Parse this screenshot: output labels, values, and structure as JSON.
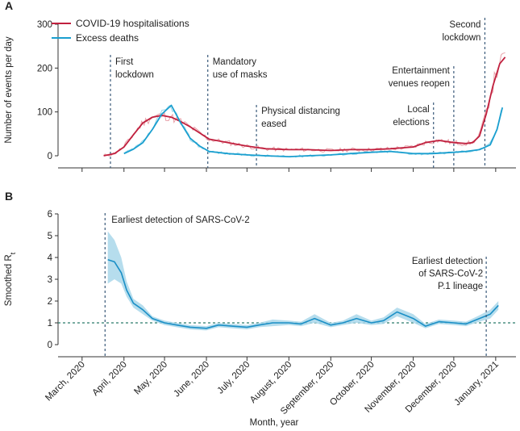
{
  "chart_data": [
    {
      "panel": "A",
      "type": "line",
      "ylabel": "Number of events per day",
      "ylim": [
        0,
        300
      ],
      "yticks": [
        0,
        100,
        200,
        300
      ],
      "colors": {
        "hosp": "#c0203e",
        "hosp_raw": "#e8a0a8",
        "deaths": "#1a9fcf",
        "deaths_raw": "#9ad6ea"
      },
      "legend": [
        "COVID-19 hospitalisations",
        "Excess deaths"
      ],
      "series": [
        {
          "name": "COVID-19 hospitalisations",
          "x": [
            "2020-03-17",
            "2020-03-25",
            "2020-04-01",
            "2020-04-08",
            "2020-04-15",
            "2020-04-22",
            "2020-04-29",
            "2020-05-06",
            "2020-05-13",
            "2020-05-20",
            "2020-05-27",
            "2020-06-03",
            "2020-06-17",
            "2020-07-01",
            "2020-07-15",
            "2020-08-01",
            "2020-08-15",
            "2020-09-01",
            "2020-09-15",
            "2020-10-01",
            "2020-10-15",
            "2020-11-01",
            "2020-11-10",
            "2020-11-20",
            "2020-12-01",
            "2020-12-10",
            "2020-12-15",
            "2020-12-20",
            "2020-12-25",
            "2020-12-30",
            "2021-01-04",
            "2021-01-08"
          ],
          "values": [
            0,
            5,
            20,
            48,
            75,
            88,
            92,
            88,
            78,
            66,
            52,
            38,
            30,
            22,
            16,
            14,
            14,
            12,
            14,
            14,
            16,
            20,
            30,
            35,
            30,
            28,
            30,
            45,
            95,
            160,
            210,
            225
          ]
        },
        {
          "name": "Excess deaths",
          "x": [
            "2020-04-01",
            "2020-04-08",
            "2020-04-15",
            "2020-04-22",
            "2020-04-29",
            "2020-05-06",
            "2020-05-13",
            "2020-05-20",
            "2020-05-27",
            "2020-06-03",
            "2020-06-17",
            "2020-07-01",
            "2020-07-15",
            "2020-08-01",
            "2020-08-15",
            "2020-09-01",
            "2020-09-15",
            "2020-10-01",
            "2020-10-15",
            "2020-11-01",
            "2020-11-15",
            "2020-12-01",
            "2020-12-10",
            "2020-12-20",
            "2020-12-28",
            "2021-01-02",
            "2021-01-06"
          ],
          "values": [
            5,
            15,
            30,
            60,
            95,
            115,
            75,
            40,
            22,
            10,
            5,
            2,
            0,
            -2,
            0,
            2,
            5,
            8,
            10,
            5,
            5,
            8,
            10,
            14,
            25,
            60,
            110
          ]
        }
      ],
      "events": [
        {
          "label": [
            "First",
            "lockdown"
          ],
          "date": "2020-03-22"
        },
        {
          "label": [
            "Mandatory",
            "use of masks"
          ],
          "date": "2020-06-02"
        },
        {
          "label": [
            "Physical distancing",
            "eased"
          ],
          "date": "2020-07-08"
        },
        {
          "label": [
            "Entertainment",
            "venues reopen"
          ],
          "date": "2020-12-01"
        },
        {
          "label": [
            "Local",
            "elections"
          ],
          "date": "2020-11-16"
        },
        {
          "label": [
            "Second",
            "lockdown"
          ],
          "date": "2020-12-24"
        }
      ]
    },
    {
      "panel": "B",
      "type": "line",
      "ylabel": "Smoothed R",
      "ylabel_sub": "t",
      "ylim": [
        0,
        6
      ],
      "yticks": [
        0,
        1,
        2,
        3,
        4,
        5,
        6
      ],
      "reference_y": 1,
      "xlabel": "Month, year",
      "x_tick_labels": [
        "March, 2020",
        "April, 2020",
        "May, 2020",
        "June, 2020",
        "July, 2020",
        "August, 2020",
        "September, 2020",
        "October, 2020",
        "November, 2020",
        "December, 2020",
        "January, 2021"
      ],
      "x_tick_dates": [
        "2020-03-01",
        "2020-04-01",
        "2020-05-01",
        "2020-06-01",
        "2020-07-01",
        "2020-08-01",
        "2020-09-01",
        "2020-10-01",
        "2020-11-01",
        "2020-12-01",
        "2021-01-01"
      ],
      "colors": {
        "line": "#1a8fc6",
        "band": "#a9d7ea"
      },
      "series": [
        {
          "name": "Smoothed Rt",
          "x": [
            "2020-03-20",
            "2020-03-25",
            "2020-03-30",
            "2020-04-03",
            "2020-04-08",
            "2020-04-15",
            "2020-04-22",
            "2020-05-01",
            "2020-05-10",
            "2020-05-20",
            "2020-06-01",
            "2020-06-10",
            "2020-06-20",
            "2020-07-01",
            "2020-07-10",
            "2020-07-20",
            "2020-08-01",
            "2020-08-10",
            "2020-08-20",
            "2020-09-01",
            "2020-09-10",
            "2020-09-20",
            "2020-10-01",
            "2020-10-10",
            "2020-10-20",
            "2020-11-01",
            "2020-11-10",
            "2020-11-20",
            "2020-12-01",
            "2020-12-10",
            "2020-12-20",
            "2020-12-28",
            "2021-01-03"
          ],
          "values": [
            3.9,
            3.8,
            3.3,
            2.5,
            1.9,
            1.6,
            1.2,
            1.0,
            0.9,
            0.8,
            0.75,
            0.9,
            0.85,
            0.8,
            0.9,
            1.0,
            1.0,
            0.95,
            1.2,
            0.9,
            1.0,
            1.2,
            1.0,
            1.1,
            1.5,
            1.2,
            0.85,
            1.05,
            1.0,
            0.95,
            1.2,
            1.4,
            1.8
          ],
          "lower": [
            2.8,
            3.0,
            2.8,
            2.2,
            1.7,
            1.4,
            1.1,
            0.9,
            0.8,
            0.7,
            0.65,
            0.8,
            0.75,
            0.7,
            0.8,
            0.85,
            0.9,
            0.85,
            1.0,
            0.8,
            0.9,
            1.0,
            0.9,
            0.95,
            1.3,
            1.0,
            0.75,
            0.95,
            0.9,
            0.85,
            1.05,
            1.2,
            1.6
          ],
          "upper": [
            5.2,
            4.8,
            4.0,
            2.9,
            2.1,
            1.8,
            1.3,
            1.1,
            1.0,
            0.9,
            0.85,
            1.0,
            0.95,
            0.9,
            1.0,
            1.15,
            1.1,
            1.05,
            1.4,
            1.0,
            1.1,
            1.4,
            1.1,
            1.25,
            1.7,
            1.4,
            0.95,
            1.15,
            1.1,
            1.05,
            1.35,
            1.6,
            2.0
          ]
        }
      ],
      "events": [
        {
          "label": [
            "Earliest detection of SARS-CoV-2"
          ],
          "date": "2020-03-18"
        },
        {
          "label": [
            "Earliest detection",
            "of SARS-CoV-2",
            "P.1 lineage"
          ],
          "date": "2020-12-25"
        }
      ]
    }
  ]
}
